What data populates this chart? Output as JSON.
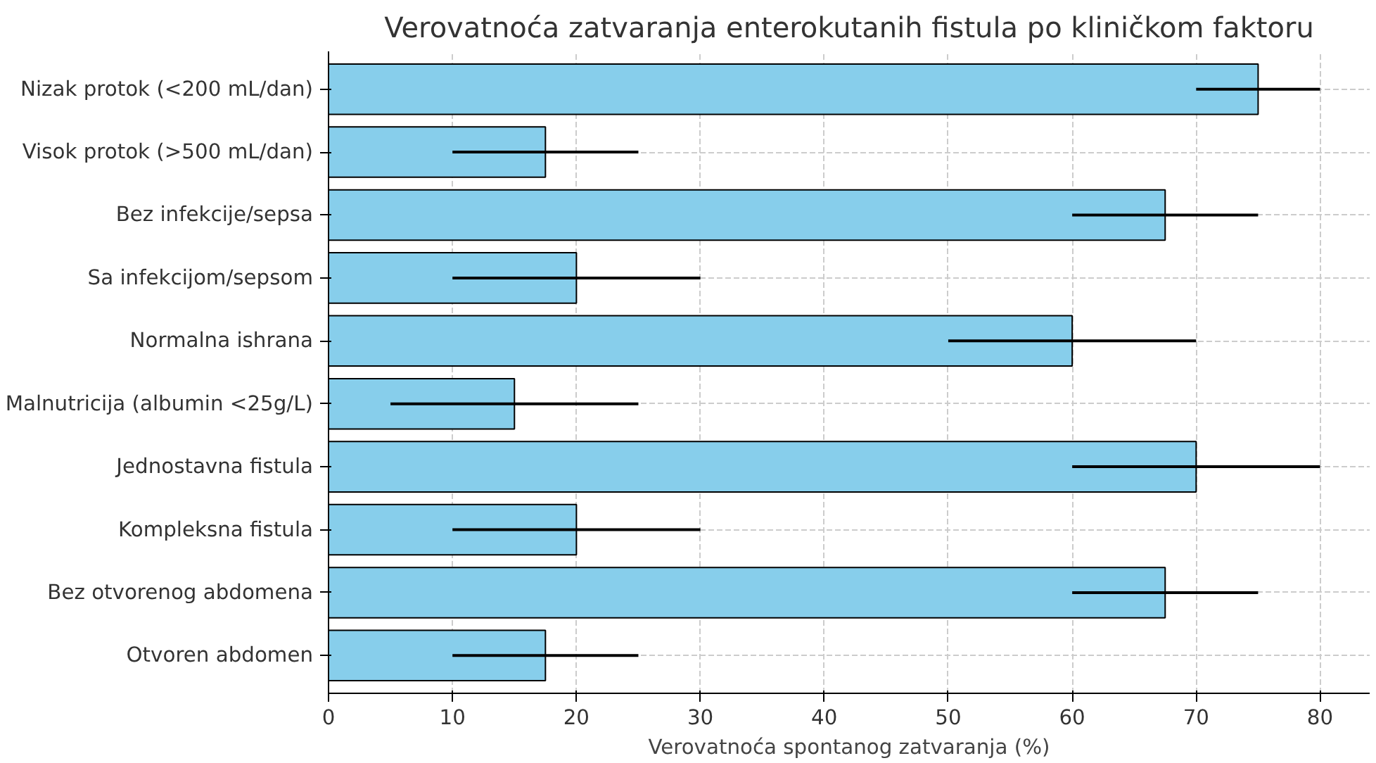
{
  "chart_data": {
    "type": "bar",
    "orientation": "horizontal",
    "title": "Verovatnoća zatvaranja enterokutanih fistula po kliničkom faktoru",
    "xlabel": "Verovatnoća spontanog zatvaranja (%)",
    "categories": [
      "Nizak protok (<200 mL/dan)",
      "Visok protok (>500 mL/dan)",
      "Bez infekcije/sepsa",
      "Sa infekcijom/sepsom",
      "Normalna ishrana",
      "Malnutricija (albumin <25g/L)",
      "Jednostavna fistula",
      "Kompleksna fistula",
      "Bez otvorenog abdomena",
      "Otvoren abdomen"
    ],
    "values": [
      75,
      17.5,
      67.5,
      20,
      60,
      15,
      70,
      20,
      67.5,
      17.5
    ],
    "errors": [
      [
        70,
        80
      ],
      [
        10,
        25
      ],
      [
        60,
        75
      ],
      [
        10,
        30
      ],
      [
        50,
        70
      ],
      [
        5,
        25
      ],
      [
        60,
        80
      ],
      [
        10,
        30
      ],
      [
        60,
        75
      ],
      [
        10,
        25
      ]
    ],
    "color": "#87ceeb",
    "xlim": [
      0,
      84
    ],
    "xticks": [
      0,
      10,
      20,
      30,
      40,
      50,
      60,
      70,
      80
    ],
    "grid": true
  }
}
